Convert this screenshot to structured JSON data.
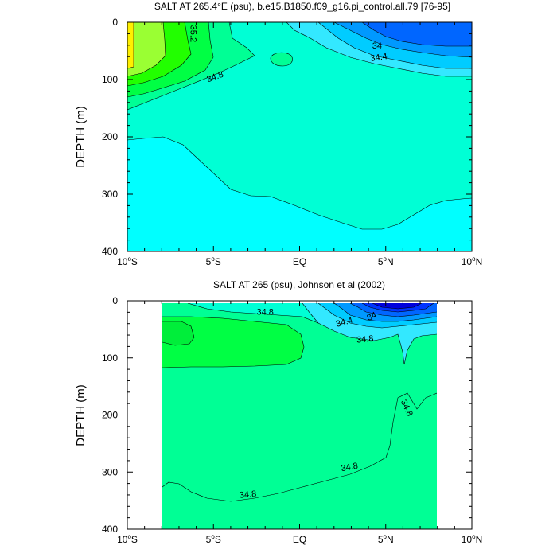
{
  "chart_data": [
    {
      "type": "contour",
      "title": "SALT AT 265.4°E (psu), b.e15.B1850.f09_g16.pi_control.all.79 [76-95]",
      "ylabel": "DEPTH (m)",
      "xlim": [
        -10,
        10
      ],
      "ylim": [
        400,
        0
      ],
      "xticks": [
        {
          "value": -10,
          "main": "10",
          "sup": "o",
          "suf": "S"
        },
        {
          "value": -5,
          "main": "5",
          "sup": "o",
          "suf": "S"
        },
        {
          "value": 0,
          "main": "EQ",
          "sup": "",
          "suf": ""
        },
        {
          "value": 5,
          "main": "5",
          "sup": "o",
          "suf": "N"
        },
        {
          "value": 10,
          "main": "10",
          "sup": "o",
          "suf": "N"
        }
      ],
      "yticks": [
        0,
        100,
        200,
        300,
        400
      ],
      "contour_labels": [
        {
          "text": "35.2",
          "lat": -6.2,
          "depth": 20,
          "rot": 90
        },
        {
          "text": "34.8",
          "lat": -4.9,
          "depth": 96,
          "rot": -20
        },
        {
          "text": "34",
          "lat": 4.5,
          "depth": 42,
          "rot": 0
        },
        {
          "text": "34.4",
          "lat": 4.6,
          "depth": 62,
          "rot": -8
        }
      ],
      "colors": {
        "bg_deep": "#00ffff",
        "mid": "#00ffd5",
        "light_green": "#00ff95",
        "green": "#00ff44",
        "green2": "#22ff00",
        "yellow_green": "#9aff33",
        "yellow": "#ffef00",
        "cyan_low": "#33e8ff",
        "sky": "#00ccff",
        "blue": "#0099ff",
        "blue_dark": "#0066ff"
      }
    },
    {
      "type": "contour",
      "title": "SALT AT 265 (psu), Johnson et al (2002)",
      "ylabel": "DEPTH (m)",
      "xlim": [
        -10,
        10
      ],
      "ylim": [
        400,
        0
      ],
      "data_lat_range": [
        -8,
        8
      ],
      "xticks": [
        {
          "value": -10,
          "main": "10",
          "sup": "o",
          "suf": "S"
        },
        {
          "value": -5,
          "main": "5",
          "sup": "o",
          "suf": "S"
        },
        {
          "value": 0,
          "main": "EQ",
          "sup": "",
          "suf": ""
        },
        {
          "value": 5,
          "main": "5",
          "sup": "o",
          "suf": "N"
        },
        {
          "value": 10,
          "main": "10",
          "sup": "o",
          "suf": "N"
        }
      ],
      "yticks": [
        0,
        100,
        200,
        300,
        400
      ],
      "contour_labels": [
        {
          "text": "34.8",
          "lat": -2.0,
          "depth": 20,
          "rot": 0
        },
        {
          "text": "34",
          "lat": 4.2,
          "depth": 28,
          "rot": -25
        },
        {
          "text": "34.4",
          "lat": 2.6,
          "depth": 38,
          "rot": -15
        },
        {
          "text": "34.8",
          "lat": 3.8,
          "depth": 68,
          "rot": -5
        },
        {
          "text": "34.8",
          "lat": 6.2,
          "depth": 188,
          "rot": 65
        },
        {
          "text": "34.8",
          "lat": 2.9,
          "depth": 292,
          "rot": -10
        },
        {
          "text": "34.8",
          "lat": -3.0,
          "depth": 340,
          "rot": -5
        }
      ],
      "colors": {
        "mid": "#00ffd5",
        "light_green": "#00ff95",
        "green": "#00ff44",
        "cyan_low": "#33e8ff",
        "sky": "#00ccff",
        "blue": "#0099ff",
        "blue_dark": "#0066ff",
        "navy": "#0033ff",
        "indigo": "#0000dd"
      }
    }
  ]
}
